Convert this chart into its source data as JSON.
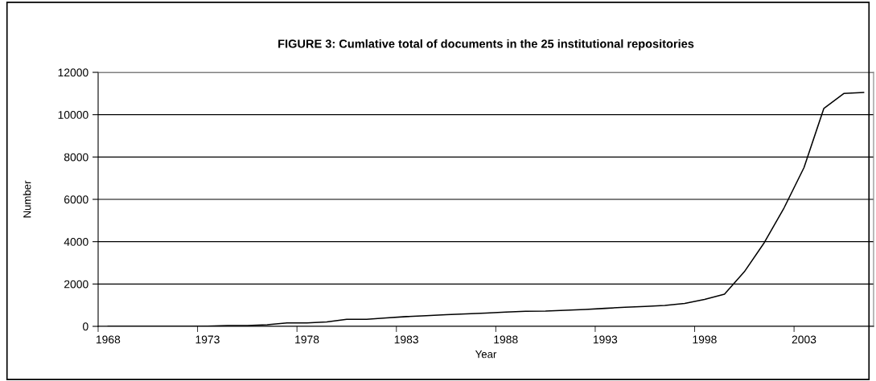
{
  "chart_data": {
    "type": "line",
    "title": "FIGURE 3: Cumlative total of documents in the 25 institutional repositories",
    "xlabel": "Year",
    "ylabel": "Number",
    "categories": [
      "1968",
      null,
      null,
      null,
      null,
      "1973",
      null,
      null,
      null,
      null,
      "1978",
      null,
      null,
      null,
      null,
      "1983",
      null,
      null,
      null,
      null,
      "1988",
      null,
      null,
      null,
      null,
      "1993",
      null,
      null,
      null,
      null,
      "1998",
      null,
      null,
      null,
      null,
      "2003",
      null,
      null,
      null
    ],
    "series": [
      {
        "color": "#000000",
        "values": [
          0,
          0,
          0,
          0,
          0,
          10,
          40,
          40,
          80,
          160,
          165,
          210,
          330,
          330,
          400,
          460,
          500,
          550,
          590,
          630,
          670,
          710,
          720,
          760,
          800,
          850,
          900,
          940,
          990,
          1080,
          1270,
          1520,
          2580,
          3950,
          5600,
          7500,
          10300,
          11000,
          11050
        ]
      }
    ],
    "ylim": [
      0,
      12000
    ],
    "yticks": [
      0,
      2000,
      4000,
      6000,
      8000,
      10000,
      12000
    ],
    "grid": "y",
    "legend": false,
    "marker": "none",
    "line_style": "solid"
  }
}
